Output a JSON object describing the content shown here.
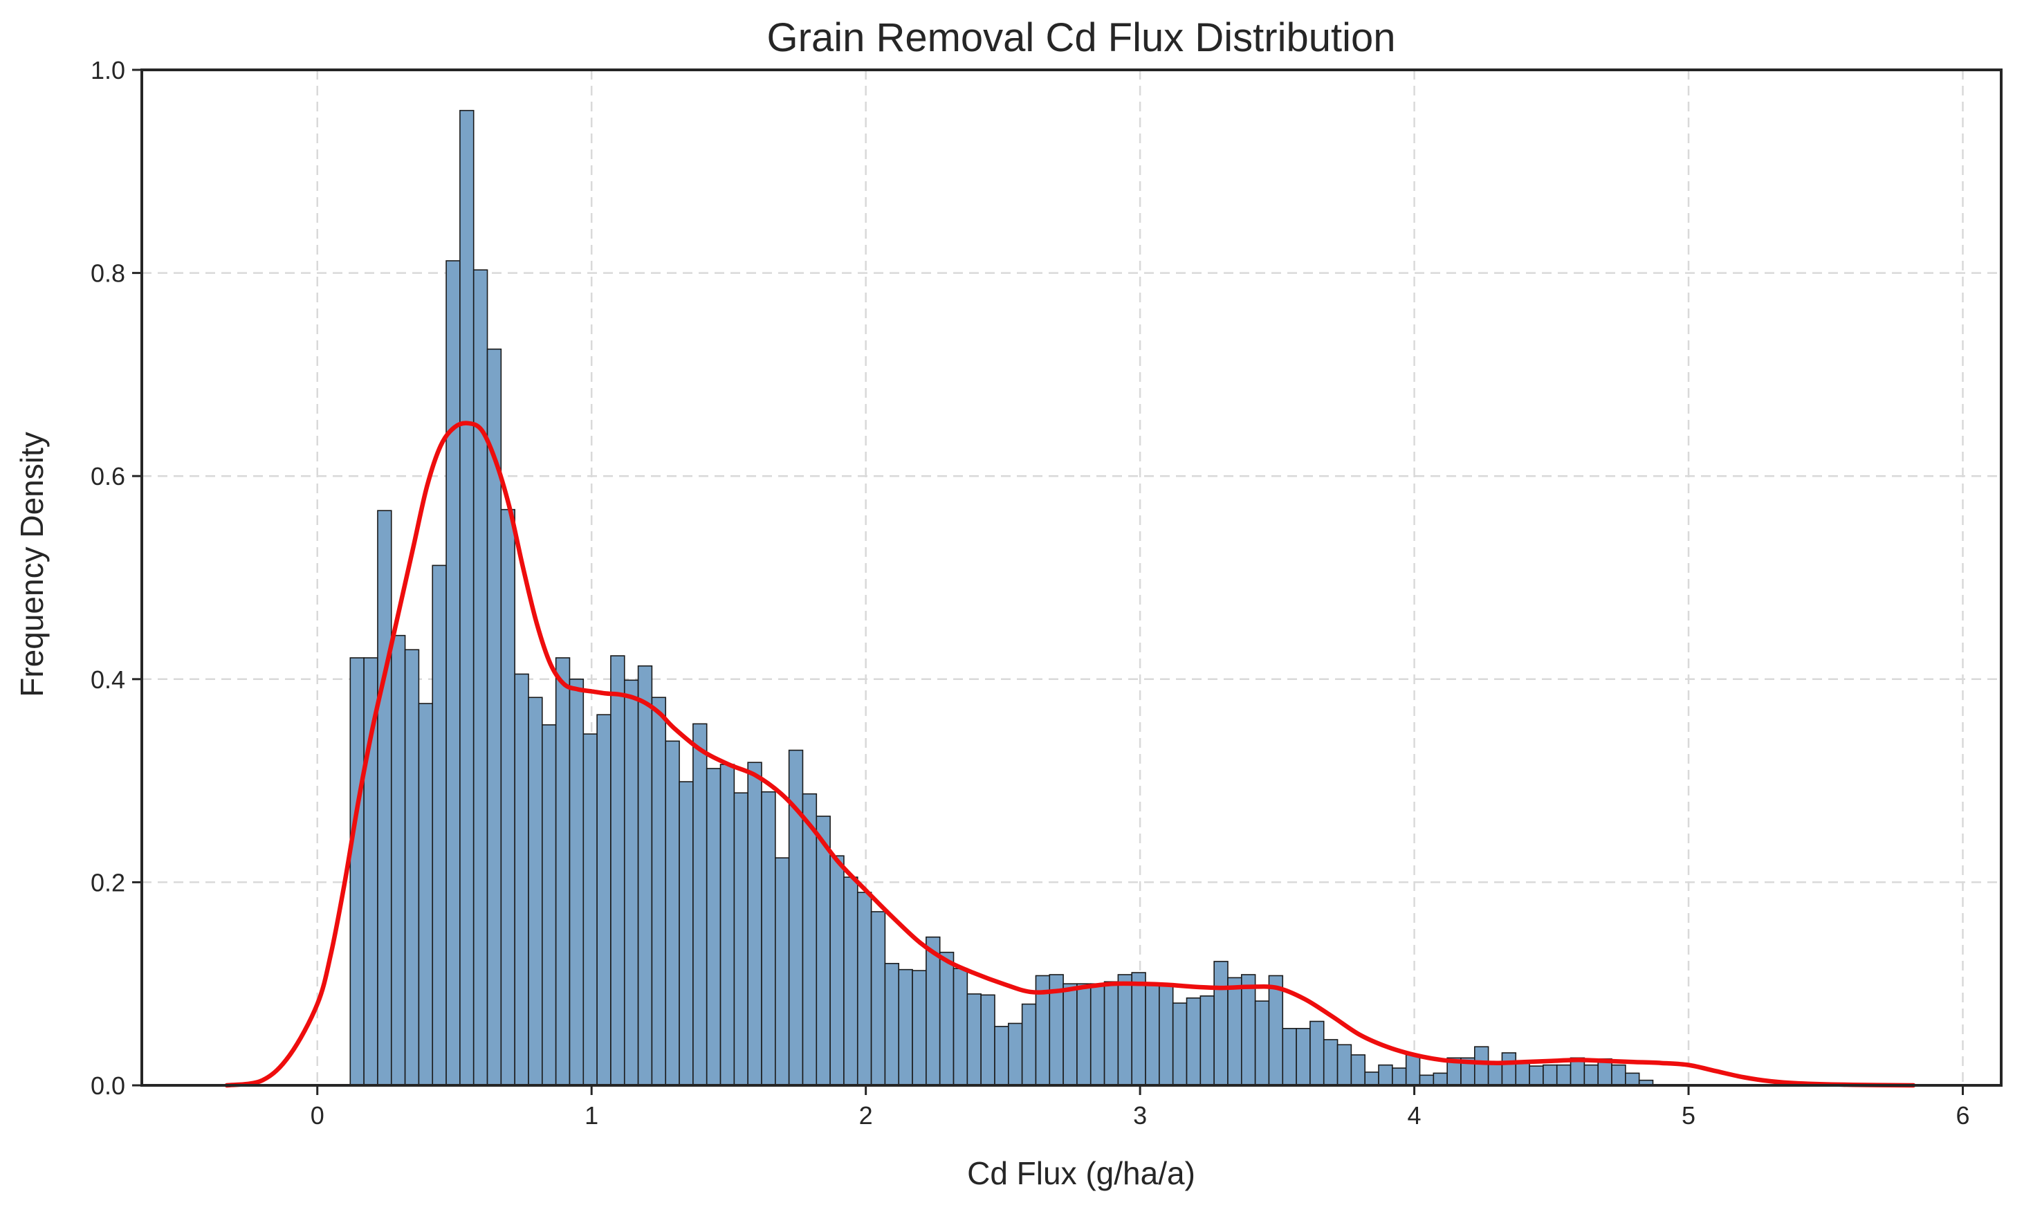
{
  "chart_data": {
    "type": "bar",
    "title": "Grain Removal Cd Flux Distribution",
    "xlabel": "Cd Flux (g/ha/a)",
    "ylabel": "Frequency Density",
    "xlim": [
      -0.64,
      6.14
    ],
    "ylim": [
      0,
      1.0
    ],
    "xticks": [
      0,
      1,
      2,
      3,
      4,
      5,
      6
    ],
    "yticks": [
      0.0,
      0.2,
      0.4,
      0.6,
      0.8,
      1.0
    ],
    "xtick_labels": [
      "0",
      "1",
      "2",
      "3",
      "4",
      "5",
      "6"
    ],
    "ytick_labels": [
      "0.0",
      "0.2",
      "0.4",
      "0.6",
      "0.8",
      "1.0"
    ],
    "grid": true,
    "colors": {
      "bars": "#7aa3c7",
      "bar_edge": "#1a1a1a",
      "kde": "#ee0d0d",
      "grid": "#d9d9d9",
      "axes": "#262626"
    },
    "histogram": {
      "bin_start": 0.12,
      "bin_width": 0.05,
      "density": [
        0.421,
        0.421,
        0.566,
        0.443,
        0.429,
        0.376,
        0.512,
        0.812,
        0.96,
        0.803,
        0.725,
        0.567,
        0.405,
        0.382,
        0.355,
        0.421,
        0.4,
        0.346,
        0.365,
        0.423,
        0.399,
        0.413,
        0.382,
        0.339,
        0.299,
        0.356,
        0.312,
        0.316,
        0.288,
        0.318,
        0.289,
        0.224,
        0.33,
        0.287,
        0.265,
        0.226,
        0.205,
        0.19,
        0.171,
        0.12,
        0.114,
        0.113,
        0.146,
        0.131,
        0.115,
        0.09,
        0.089,
        0.058,
        0.061,
        0.08,
        0.108,
        0.109,
        0.1,
        0.1,
        0.1,
        0.102,
        0.109,
        0.111,
        0.1,
        0.1,
        0.081,
        0.086,
        0.088,
        0.122,
        0.106,
        0.109,
        0.083,
        0.108,
        0.056,
        0.056,
        0.063,
        0.045,
        0.04,
        0.03,
        0.013,
        0.02,
        0.017,
        0.03,
        0.01,
        0.012,
        0.027,
        0.027,
        0.038,
        0.023,
        0.032,
        0.022,
        0.019,
        0.02,
        0.02,
        0.027,
        0.02,
        0.026,
        0.02,
        0.012,
        0.005
      ]
    },
    "series": [
      {
        "type": "line",
        "x": [
          -0.33,
          -0.2,
          -0.1,
          0.0,
          0.05,
          0.1,
          0.15,
          0.2,
          0.25,
          0.3,
          0.35,
          0.4,
          0.45,
          0.5,
          0.55,
          0.6,
          0.65,
          0.7,
          0.75,
          0.8,
          0.85,
          0.9,
          0.95,
          1.0,
          1.05,
          1.1,
          1.15,
          1.2,
          1.25,
          1.3,
          1.4,
          1.5,
          1.6,
          1.7,
          1.8,
          1.9,
          2.0,
          2.1,
          2.2,
          2.3,
          2.4,
          2.5,
          2.6,
          2.7,
          2.8,
          2.9,
          3.0,
          3.1,
          3.2,
          3.3,
          3.4,
          3.5,
          3.6,
          3.7,
          3.8,
          3.9,
          4.0,
          4.1,
          4.2,
          4.3,
          4.4,
          4.5,
          4.6,
          4.7,
          4.8,
          4.9,
          5.0,
          5.1,
          5.2,
          5.3,
          5.4,
          5.6,
          5.82
        ],
        "y": [
          0.0,
          0.005,
          0.03,
          0.08,
          0.13,
          0.2,
          0.28,
          0.35,
          0.41,
          0.47,
          0.53,
          0.59,
          0.63,
          0.648,
          0.652,
          0.645,
          0.615,
          0.57,
          0.51,
          0.455,
          0.415,
          0.395,
          0.39,
          0.388,
          0.386,
          0.385,
          0.382,
          0.376,
          0.366,
          0.352,
          0.33,
          0.316,
          0.305,
          0.285,
          0.255,
          0.22,
          0.192,
          0.165,
          0.14,
          0.122,
          0.11,
          0.1,
          0.092,
          0.093,
          0.097,
          0.1,
          0.1,
          0.099,
          0.097,
          0.096,
          0.097,
          0.096,
          0.085,
          0.068,
          0.05,
          0.038,
          0.03,
          0.025,
          0.023,
          0.022,
          0.023,
          0.024,
          0.025,
          0.024,
          0.023,
          0.022,
          0.02,
          0.014,
          0.008,
          0.004,
          0.002,
          0.0005,
          0.0
        ]
      }
    ]
  }
}
